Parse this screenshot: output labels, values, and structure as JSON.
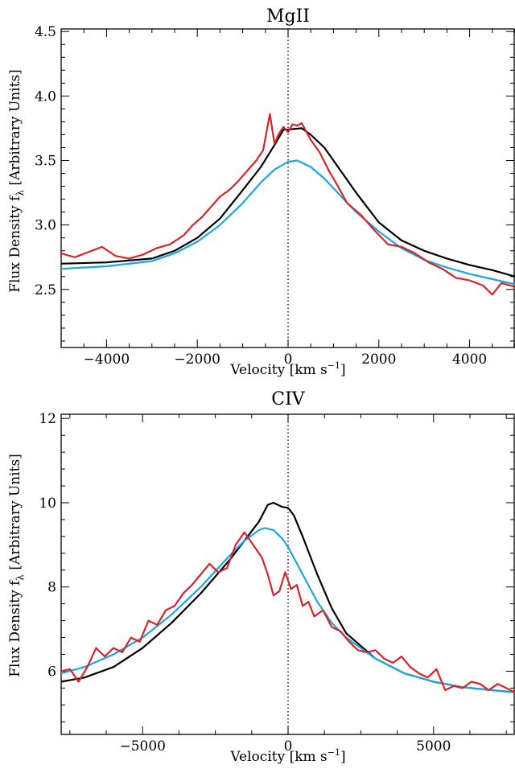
{
  "chart_data": [
    {
      "type": "line",
      "title": "MgII",
      "xlabel": "Velocity [km s",
      "xlabel_sup": "−1",
      "xlabel_end": "]",
      "ylabel": "Flux Density f",
      "ylabel_sub": "λ",
      "ylabel_end": " [Arbitrary Units]",
      "xlim": [
        -5000,
        5000
      ],
      "ylim": [
        2.05,
        4.52
      ],
      "xticks": [
        -4000,
        -2000,
        0,
        2000,
        4000
      ],
      "xtick_labels": [
        "−4000",
        "−2000",
        "0",
        "2000",
        "4000"
      ],
      "yticks": [
        2.5,
        3.0,
        3.5,
        4.0,
        4.5
      ],
      "ytick_labels": [
        "2.5",
        "3.0",
        "3.5",
        "4.0",
        "4.5"
      ],
      "vline_x": 0,
      "grid": false,
      "series": [
        {
          "color": "#000000",
          "x": [
            -5000,
            -4000,
            -3000,
            -2500,
            -2000,
            -1500,
            -1000,
            -600,
            -300,
            -100,
            0,
            300,
            500,
            800,
            1000,
            1500,
            2000,
            2500,
            3000,
            3500,
            4000,
            4500,
            5000
          ],
          "y": [
            2.7,
            2.71,
            2.74,
            2.8,
            2.9,
            3.05,
            3.27,
            3.45,
            3.62,
            3.74,
            3.74,
            3.75,
            3.7,
            3.6,
            3.5,
            3.25,
            3.02,
            2.88,
            2.8,
            2.74,
            2.69,
            2.65,
            2.6
          ]
        },
        {
          "color": "#1aa6df",
          "x": [
            -5000,
            -4000,
            -3000,
            -2500,
            -2000,
            -1500,
            -1000,
            -600,
            -300,
            0,
            200,
            500,
            800,
            1200,
            1500,
            2000,
            2500,
            3000,
            3500,
            4000,
            4500,
            5000
          ],
          "y": [
            2.66,
            2.68,
            2.72,
            2.78,
            2.87,
            3.0,
            3.17,
            3.33,
            3.43,
            3.49,
            3.5,
            3.45,
            3.36,
            3.21,
            3.1,
            2.95,
            2.82,
            2.73,
            2.67,
            2.62,
            2.58,
            2.54
          ]
        },
        {
          "color": "#d9232b",
          "x": [
            -5000,
            -4700,
            -4400,
            -4100,
            -3800,
            -3500,
            -3200,
            -2900,
            -2600,
            -2300,
            -2100,
            -1900,
            -1700,
            -1500,
            -1300,
            -1100,
            -900,
            -700,
            -550,
            -400,
            -300,
            -200,
            -100,
            0,
            100,
            200,
            300,
            500,
            700,
            900,
            1100,
            1300,
            1600,
            1900,
            2200,
            2500,
            2800,
            3100,
            3400,
            3700,
            4000,
            4300,
            4500,
            4700,
            5000
          ],
          "y": [
            2.78,
            2.75,
            2.79,
            2.83,
            2.76,
            2.74,
            2.77,
            2.82,
            2.85,
            2.92,
            3.0,
            3.06,
            3.14,
            3.22,
            3.27,
            3.34,
            3.42,
            3.5,
            3.58,
            3.86,
            3.63,
            3.71,
            3.76,
            3.72,
            3.78,
            3.77,
            3.79,
            3.66,
            3.56,
            3.42,
            3.3,
            3.17,
            3.08,
            2.96,
            2.85,
            2.83,
            2.78,
            2.71,
            2.66,
            2.59,
            2.57,
            2.53,
            2.46,
            2.55,
            2.52
          ]
        }
      ]
    },
    {
      "type": "line",
      "title": "CIV",
      "xlabel": "Velocity [km s",
      "xlabel_sup": "−1",
      "xlabel_end": "]",
      "ylabel": "Flux Density f",
      "ylabel_sub": "λ",
      "ylabel_end": " [Arbitrary Units]",
      "xlim": [
        -7800,
        7800
      ],
      "ylim": [
        4.5,
        12.1
      ],
      "xticks": [
        -5000,
        0,
        5000
      ],
      "xtick_labels": [
        "−5000",
        "0",
        "5000"
      ],
      "yticks": [
        6,
        8,
        10,
        12
      ],
      "ytick_labels": [
        "6",
        "8",
        "10",
        "12"
      ],
      "vline_x": 0,
      "grid": false,
      "series": [
        {
          "color": "#000000",
          "x": [
            -7800,
            -7000,
            -6000,
            -5000,
            -4000,
            -3000,
            -2000,
            -1500,
            -1000,
            -700,
            -500,
            -200,
            0,
            200,
            500,
            1000,
            1500,
            2000,
            3000,
            4000,
            5000,
            6000,
            7000,
            7800
          ],
          "y": [
            5.75,
            5.85,
            6.1,
            6.55,
            7.15,
            7.85,
            8.65,
            9.1,
            9.55,
            9.95,
            10.0,
            9.9,
            9.88,
            9.7,
            9.2,
            8.3,
            7.5,
            6.9,
            6.3,
            5.95,
            5.75,
            5.62,
            5.55,
            5.5
          ]
        },
        {
          "color": "#1aa6df",
          "x": [
            -7800,
            -7000,
            -6000,
            -5000,
            -4000,
            -3000,
            -2000,
            -1500,
            -1000,
            -800,
            -500,
            -200,
            0,
            500,
            1000,
            1500,
            2000,
            3000,
            4000,
            5000,
            6000,
            7000,
            7800
          ],
          "y": [
            5.95,
            6.1,
            6.4,
            6.8,
            7.35,
            8.0,
            8.75,
            9.1,
            9.35,
            9.4,
            9.35,
            9.15,
            8.95,
            8.3,
            7.65,
            7.15,
            6.8,
            6.3,
            5.95,
            5.75,
            5.62,
            5.55,
            5.5
          ]
        },
        {
          "color": "#d9232b",
          "x": [
            -7800,
            -7500,
            -7200,
            -6900,
            -6600,
            -6300,
            -6000,
            -5700,
            -5400,
            -5100,
            -4800,
            -4500,
            -4200,
            -3900,
            -3600,
            -3300,
            -3000,
            -2700,
            -2400,
            -2100,
            -1800,
            -1500,
            -1300,
            -1100,
            -900,
            -700,
            -500,
            -300,
            -100,
            100,
            300,
            500,
            700,
            900,
            1200,
            1500,
            1800,
            2100,
            2400,
            2700,
            3000,
            3300,
            3600,
            3900,
            4200,
            4500,
            4800,
            5100,
            5400,
            5700,
            6000,
            6300,
            6600,
            6900,
            7200,
            7500,
            7800
          ],
          "y": [
            6.0,
            6.05,
            5.75,
            6.1,
            6.55,
            6.35,
            6.55,
            6.45,
            6.8,
            6.7,
            7.2,
            7.1,
            7.45,
            7.55,
            7.85,
            8.05,
            8.3,
            8.55,
            8.35,
            8.45,
            9.0,
            9.3,
            9.1,
            8.9,
            8.7,
            8.3,
            7.8,
            7.9,
            8.35,
            7.95,
            8.05,
            7.55,
            7.65,
            7.3,
            7.45,
            7.05,
            6.95,
            6.7,
            6.5,
            6.45,
            6.5,
            6.3,
            6.2,
            6.35,
            6.1,
            5.95,
            5.85,
            6.05,
            5.55,
            5.65,
            5.6,
            5.75,
            5.7,
            5.55,
            5.7,
            5.6,
            5.5
          ]
        }
      ]
    }
  ]
}
